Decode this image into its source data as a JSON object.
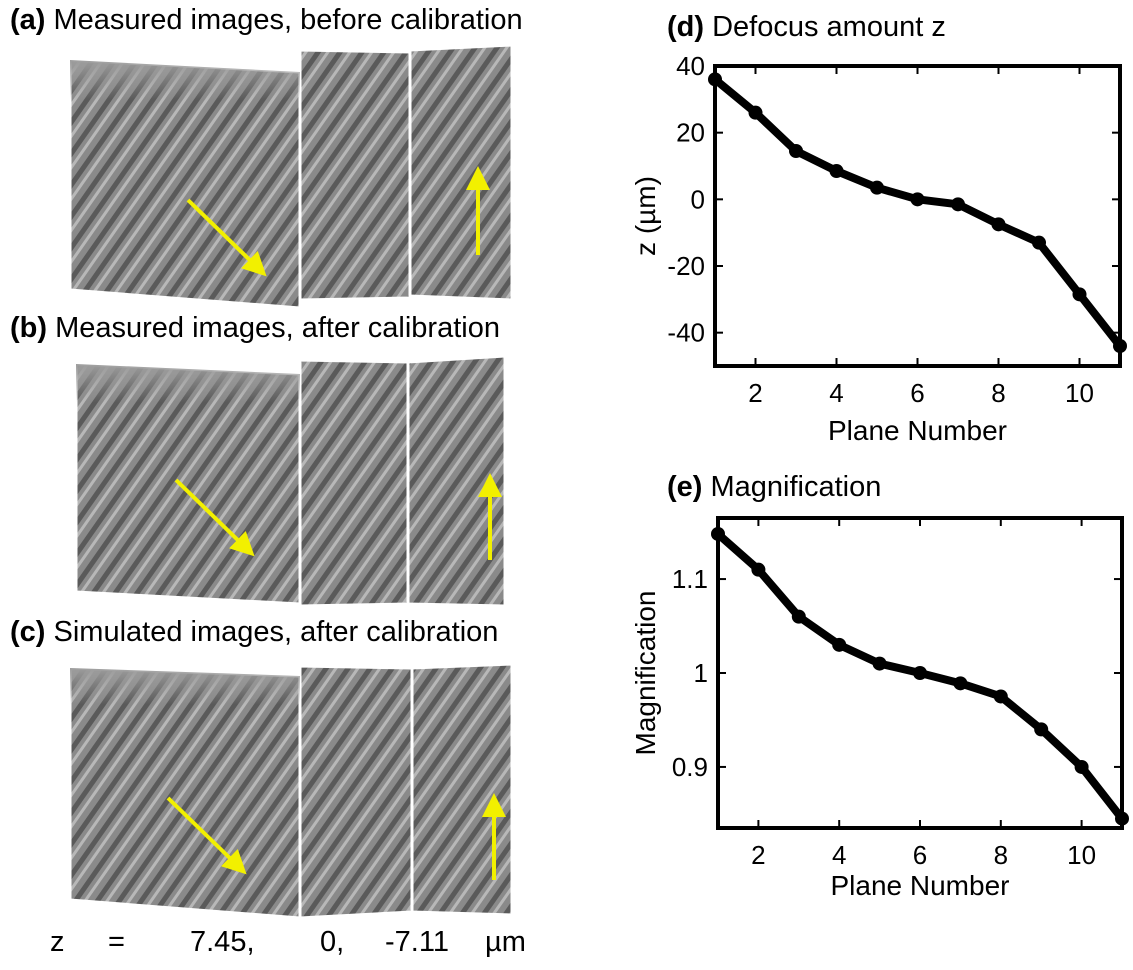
{
  "panels": {
    "a": {
      "letter": "(a)",
      "title": "Measured images, before calibration"
    },
    "b": {
      "letter": "(b)",
      "title": "Measured images, after calibration"
    },
    "c": {
      "letter": "(c)",
      "title": "Simulated images, after calibration"
    }
  },
  "z_line": {
    "symbol": "z",
    "equals": "=",
    "values": [
      "7.45,",
      "0,",
      "-7.11"
    ],
    "unit": "µm"
  },
  "chart_data": [
    {
      "id": "d",
      "type": "line",
      "panel_letter": "(d)",
      "title": "Defocus amount z",
      "xlabel": "Plane Number",
      "ylabel": "z (µm)",
      "x": [
        1,
        2,
        3,
        4,
        5,
        6,
        7,
        8,
        9,
        10,
        11
      ],
      "values": [
        36,
        26,
        14.5,
        8.5,
        3.5,
        0,
        -1.5,
        -7.5,
        -13,
        -28.5,
        -44
      ],
      "xlim": [
        1,
        11
      ],
      "ylim": [
        -50,
        40
      ],
      "xticks": [
        2,
        4,
        6,
        8,
        10
      ],
      "yticks": [
        40,
        20,
        0,
        -20,
        -40
      ],
      "xtick_labels": [
        "2",
        "4",
        "6",
        "8",
        "10"
      ],
      "ytick_labels": [
        "40",
        "20",
        "0",
        "-20",
        "-40"
      ],
      "grid": false,
      "line_color": "#000000",
      "markers": true
    },
    {
      "id": "e",
      "type": "line",
      "panel_letter": "(e)",
      "title": "Magnification",
      "xlabel": "Plane Number",
      "ylabel": "Magnification",
      "x": [
        1,
        2,
        3,
        4,
        5,
        6,
        7,
        8,
        9,
        10,
        11
      ],
      "values": [
        1.148,
        1.11,
        1.06,
        1.03,
        1.01,
        1.0,
        0.989,
        0.975,
        0.94,
        0.9,
        0.845
      ],
      "xlim": [
        1,
        11
      ],
      "ylim": [
        0.835,
        1.165
      ],
      "xticks": [
        2,
        4,
        6,
        8,
        10
      ],
      "yticks": [
        1.1,
        1,
        0.9
      ],
      "xtick_labels": [
        "2",
        "4",
        "6",
        "8",
        "10"
      ],
      "ytick_labels": [
        "1.1",
        "1",
        "0.9"
      ],
      "grid": false,
      "line_color": "#000000",
      "markers": true
    }
  ],
  "colors": {
    "arrow": "#f2f000",
    "line": "#000000"
  },
  "image_semantics": "microscopy-defocus-stack"
}
